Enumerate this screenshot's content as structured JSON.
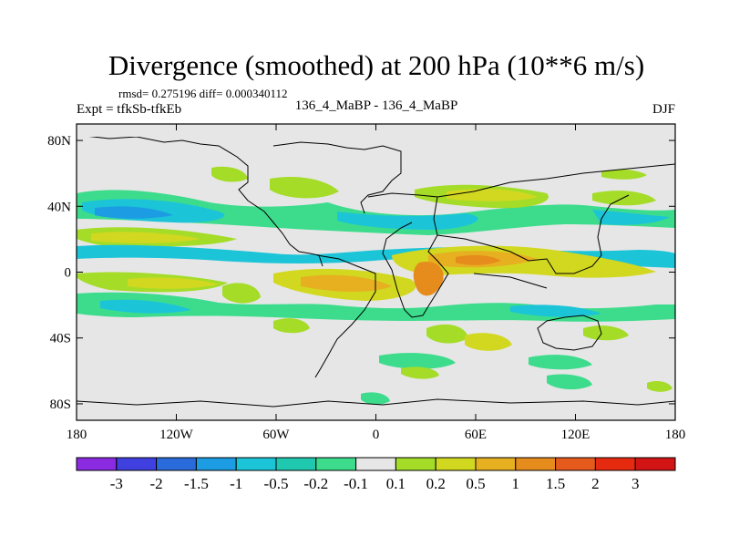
{
  "chart_data": {
    "type": "heatmap",
    "title": "Divergence (smoothed) at 200 hPa (10**6 m/s)",
    "stats_text": "rmsd= 0.275196 diff= 0.000340112",
    "experiment_text": "Expt = tfkSb-tfkEb",
    "comparison_text": "136_4_MaBP - 136_4_MaBP",
    "season": "DJF",
    "x_ticks": [
      "180",
      "120W",
      "60W",
      "0",
      "60E",
      "120E",
      "180"
    ],
    "y_ticks": [
      "80N",
      "40N",
      "0",
      "40S",
      "80S"
    ],
    "xlim": [
      -180,
      180
    ],
    "ylim": [
      -90,
      90
    ],
    "levels": [
      "-3",
      "-2",
      "-1.5",
      "-1",
      "-0.5",
      "-0.2",
      "-0.1",
      "0.1",
      "0.2",
      "0.5",
      "1",
      "1.5",
      "2",
      "3"
    ],
    "colors": [
      "#8a2be2",
      "#4040e0",
      "#2a6bdc",
      "#1c9ce2",
      "#1cc4d8",
      "#20c8b0",
      "#3cdc8c",
      "#e6e6e6",
      "#a4dc28",
      "#d2d820",
      "#e6b020",
      "#e68c1c",
      "#e65a1c",
      "#e62a10",
      "#d21414"
    ]
  }
}
